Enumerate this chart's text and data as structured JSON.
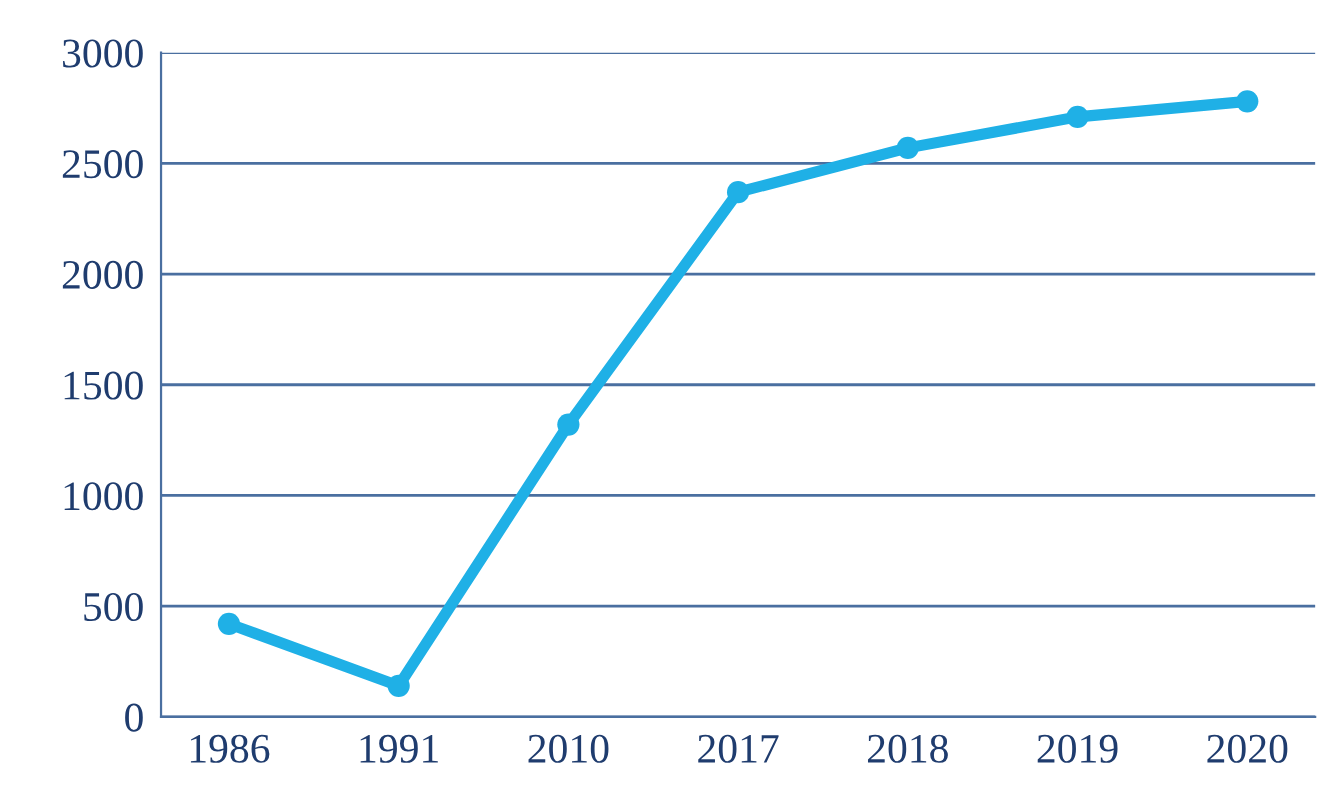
{
  "chart_data": {
    "type": "line",
    "categories": [
      "1986",
      "1991",
      "2010",
      "2017",
      "2018",
      "2019",
      "2020"
    ],
    "series": [
      {
        "color": "#1fb0e6",
        "values": [
          420,
          140,
          1320,
          2370,
          2570,
          2710,
          2780
        ]
      }
    ],
    "ylim": [
      0,
      3000
    ],
    "yticks": [
      0,
      500,
      1000,
      1500,
      2000,
      2500,
      3000
    ],
    "grid": "y",
    "marker": "circle",
    "line_style": "solid"
  }
}
